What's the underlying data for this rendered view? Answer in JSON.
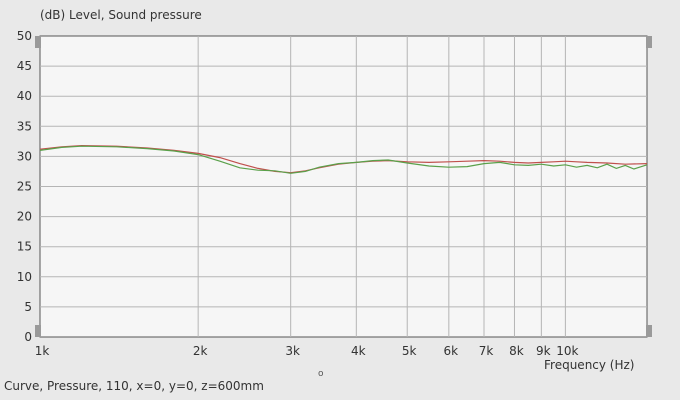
{
  "header": {
    "y_axis_title": "(dB)  Level, Sound pressure"
  },
  "footer": {
    "caption": "Curve, Pressure, 110, x=0, y=0, z=600mm",
    "marker": "o"
  },
  "chart_data": {
    "type": "line",
    "title": "",
    "ylabel": "(dB)  Level, Sound pressure",
    "xlabel": "Frequency  (Hz)",
    "x_scale": "log",
    "xlim": [
      1000,
      14300
    ],
    "ylim": [
      0,
      50
    ],
    "yticks": [
      0,
      5,
      10,
      15,
      20,
      25,
      30,
      35,
      40,
      45,
      50
    ],
    "xticks": [
      {
        "value": 1000,
        "label": "1k"
      },
      {
        "value": 2000,
        "label": "2k"
      },
      {
        "value": 3000,
        "label": "3k"
      },
      {
        "value": 4000,
        "label": "4k"
      },
      {
        "value": 5000,
        "label": "5k"
      },
      {
        "value": 6000,
        "label": "6k"
      },
      {
        "value": 7000,
        "label": "7k"
      },
      {
        "value": 8000,
        "label": "8k"
      },
      {
        "value": 9000,
        "label": "9k"
      },
      {
        "value": 10000,
        "label": "10k"
      }
    ],
    "grid": true,
    "series": [
      {
        "color": "#c0504d",
        "x": [
          1000,
          1100,
          1200,
          1400,
          1600,
          1800,
          2000,
          2200,
          2400,
          2600,
          2800,
          3000,
          3200,
          3400,
          3700,
          4000,
          4300,
          4600,
          5000,
          5500,
          6000,
          6500,
          7000,
          7500,
          8000,
          8500,
          9000,
          9500,
          10000,
          10500,
          11000,
          12000,
          13000,
          14300
        ],
        "y": [
          31.2,
          31.6,
          31.8,
          31.7,
          31.4,
          31.0,
          30.5,
          29.8,
          28.8,
          28.0,
          27.5,
          27.3,
          27.6,
          28.1,
          28.7,
          29.0,
          29.2,
          29.3,
          29.1,
          29.0,
          29.1,
          29.2,
          29.3,
          29.2,
          29.0,
          28.9,
          29.0,
          29.1,
          29.2,
          29.1,
          29.0,
          28.9,
          28.7,
          28.8
        ]
      },
      {
        "color": "#5aa04a",
        "x": [
          1000,
          1100,
          1200,
          1400,
          1600,
          1800,
          2000,
          2200,
          2400,
          2600,
          2800,
          3000,
          3200,
          3400,
          3700,
          4000,
          4300,
          4600,
          5000,
          5500,
          6000,
          6500,
          7000,
          7500,
          8000,
          8500,
          9000,
          9500,
          10000,
          10500,
          11000,
          11500,
          12000,
          12500,
          13000,
          13500,
          14300
        ],
        "y": [
          31.0,
          31.5,
          31.7,
          31.6,
          31.3,
          30.9,
          30.3,
          29.2,
          28.1,
          27.7,
          27.6,
          27.2,
          27.5,
          28.2,
          28.8,
          29.0,
          29.3,
          29.4,
          28.9,
          28.4,
          28.2,
          28.3,
          28.8,
          29.0,
          28.6,
          28.5,
          28.7,
          28.4,
          28.6,
          28.2,
          28.5,
          28.1,
          28.7,
          28.0,
          28.5,
          27.9,
          28.6
        ]
      }
    ]
  }
}
